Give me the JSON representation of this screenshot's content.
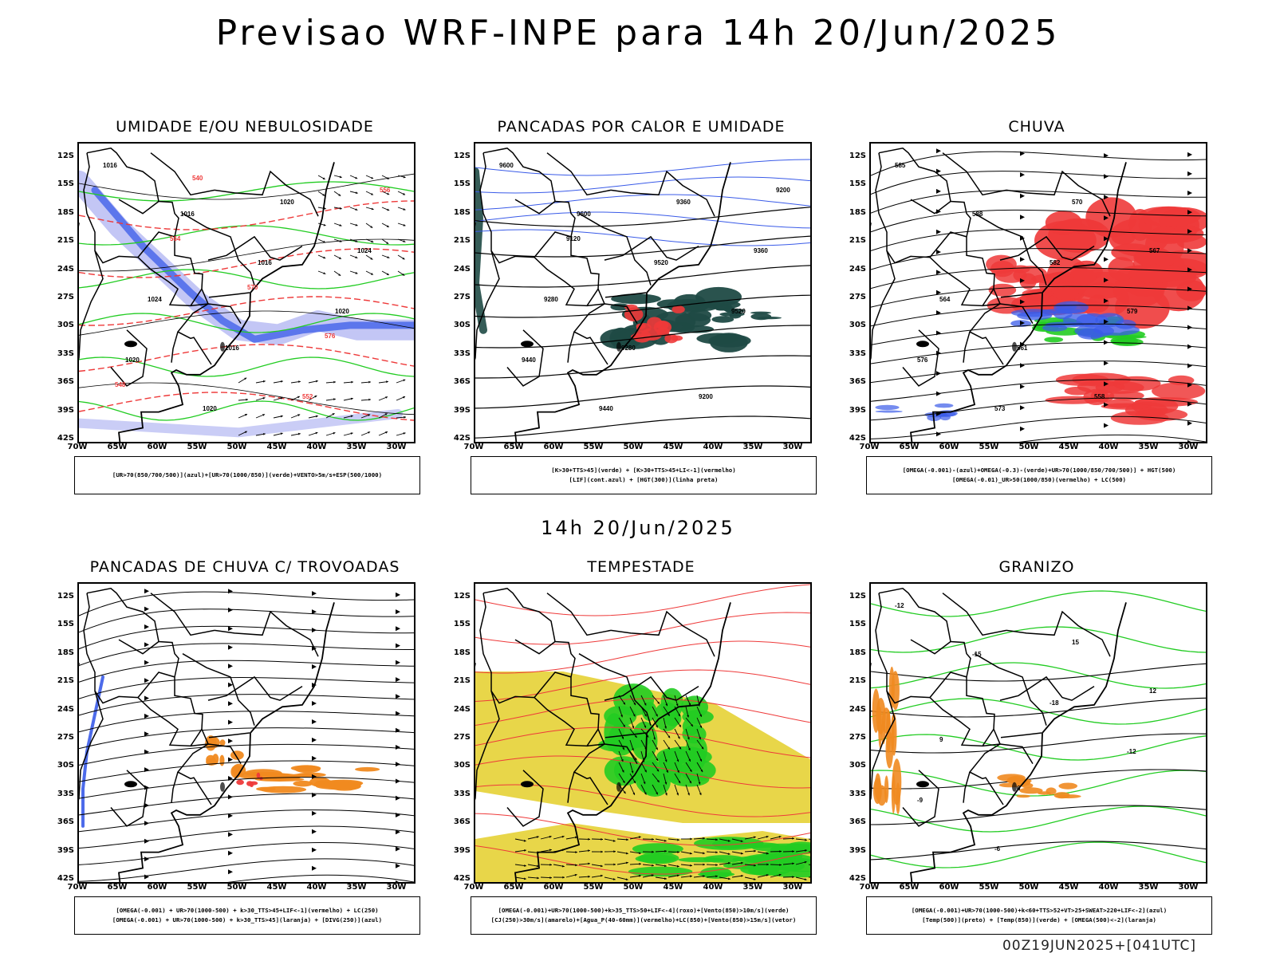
{
  "header": {
    "title": "Previsao WRF-INPE  para 14h 20/Jun/2025",
    "subtitle": "14h 20/Jun/2025",
    "footer": "00Z19JUN2025+[041UTC]"
  },
  "axes": {
    "lat_ticks": [
      "12S",
      "15S",
      "18S",
      "21S",
      "24S",
      "27S",
      "30S",
      "33S",
      "36S",
      "39S",
      "42S"
    ],
    "lon_ticks": [
      "70W",
      "65W",
      "60W",
      "55W",
      "50W",
      "45W",
      "40W",
      "35W",
      "30W"
    ]
  },
  "colors": {
    "blue": "#3a5be8",
    "light_blue": "#b4b8f2",
    "green": "#22cc22",
    "red": "#ee3a3a",
    "orange": "#f08a20",
    "yellow": "#e6d23a",
    "dark_teal": "#1f4a45",
    "black": "#000000"
  },
  "panels": [
    {
      "id": "umidade",
      "title": "UMIDADE E/OU NEBULOSIDADE",
      "legend": [
        "[UR>70(850/700/500)](azul)+[UR>70(1000/850)](verde)+VENTO>5m/s+ESP(500/1000)"
      ],
      "contour_labels": [
        "1016",
        "1016",
        "1016",
        "1020",
        "1020",
        "1020",
        "1020",
        "1024",
        "1024",
        "1016",
        "552",
        "556",
        "564",
        "570",
        "576",
        "548",
        "540"
      ]
    },
    {
      "id": "pancadas_calor",
      "title": "PANCADAS POR CALOR E UMIDADE",
      "legend": [
        "[K>30+TTS>45](verde) + [K>30+TTS>45+LI<-1](vermelho)",
        "[LIF](cont.azul) + [HGT(300)](linha preta)"
      ],
      "contour_labels": [
        "9600",
        "9600",
        "9520",
        "9520",
        "9440",
        "9440",
        "9360",
        "9360",
        "9280",
        "9280",
        "9200",
        "9200",
        "9120"
      ]
    },
    {
      "id": "chuva",
      "title": "CHUVA",
      "legend": [
        "[OMEGA(-0.001)-(azul)+OMEGA(-0.3)-(verde)+UR>70(1000/850/700/500)] + HGT(500)",
        "[OMEGA(-0.01)_UR>50(1000/850)(vermelho) + LC(500)"
      ],
      "contour_labels": [
        "585",
        "588",
        "582",
        "579",
        "576",
        "573",
        "570",
        "567",
        "564",
        "561",
        "558"
      ]
    },
    {
      "id": "trovoadas",
      "title": "PANCADAS DE CHUVA C/ TROVOADAS",
      "legend": [
        "[OMEGA(-0.001) + UR>70(1000-500) + k>30_TTS>45+LIF<-1](vermelho) + LC(250)",
        "[OMEGA(-0.001) + UR>70(1000-500) + k>30_TTS>45](laranja) + [DIVG(250)](azul)"
      ],
      "contour_labels": []
    },
    {
      "id": "tempestade",
      "title": "TEMPESTADE",
      "legend": [
        "[OMEGA(-0.001)+UR>70(1000-500)+k>35_TTS>50+LIF<-4](roxo)+[Vento(850)>10m/s](verde)",
        "[CJ(250)>30m/s](amarelo)+[Agua_P(40-60mm)](vermelho)+LC(850)+[Vento(850)>15m/s](vetor)"
      ],
      "contour_labels": []
    },
    {
      "id": "granizo",
      "title": "GRANIZO",
      "legend": [
        "[OMEGA(-0.001)+UR>70(1000-500)+k<60+TTS>52+VT>25+SWEAT>220+LIF<-2](azul)",
        "[Temp(500)](preto) + [Temp(850)](verde) + [OMEGA(500)<-2](laranja)"
      ],
      "contour_labels": [
        "-12",
        "-15",
        "-18",
        "-12",
        "-9",
        "-6",
        "15",
        "12",
        "9",
        "6"
      ]
    }
  ]
}
